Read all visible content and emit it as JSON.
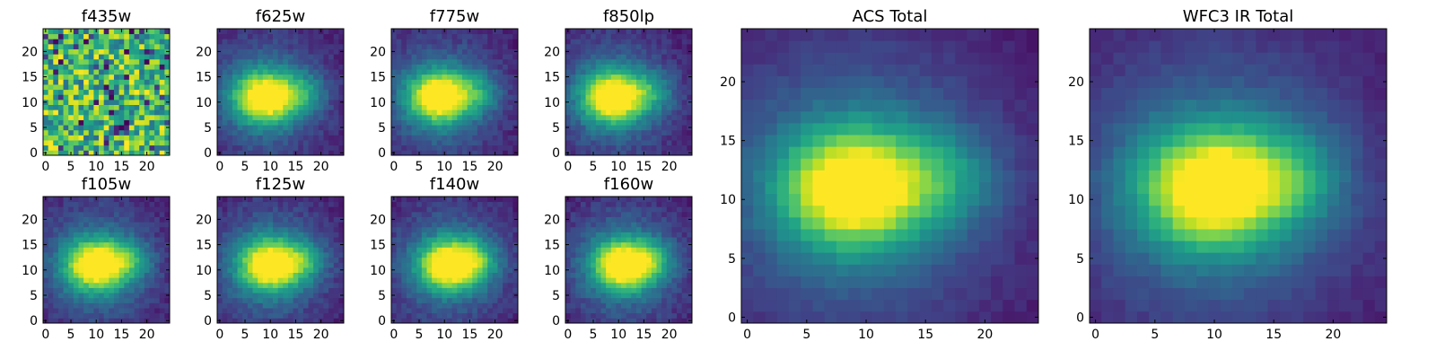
{
  "chart_data": [
    {
      "type": "heatmap",
      "title": "f435w",
      "grid": "25x25",
      "pattern": "noise",
      "xlim": [
        0,
        24
      ],
      "ylim": [
        0,
        24
      ],
      "xticks": [
        "0",
        "5",
        "10",
        "15",
        "20"
      ],
      "yticks": [
        "0",
        "5",
        "10",
        "15",
        "20"
      ],
      "colormap": "viridis"
    },
    {
      "type": "heatmap",
      "title": "f625w",
      "grid": "25x25",
      "pattern": "source",
      "peak": [
        9,
        11
      ],
      "xlim": [
        0,
        24
      ],
      "ylim": [
        0,
        24
      ],
      "xticks": [
        "0",
        "5",
        "10",
        "15",
        "20"
      ],
      "yticks": [
        "0",
        "5",
        "10",
        "15",
        "20"
      ],
      "colormap": "viridis"
    },
    {
      "type": "heatmap",
      "title": "f775w",
      "grid": "25x25",
      "pattern": "source",
      "peak": [
        9,
        11
      ],
      "xlim": [
        0,
        24
      ],
      "ylim": [
        0,
        24
      ],
      "xticks": [
        "0",
        "5",
        "10",
        "15",
        "20"
      ],
      "yticks": [
        "0",
        "5",
        "10",
        "15",
        "20"
      ],
      "colormap": "viridis"
    },
    {
      "type": "heatmap",
      "title": "f850lp",
      "grid": "25x25",
      "pattern": "source",
      "peak": [
        9,
        11
      ],
      "xlim": [
        0,
        24
      ],
      "ylim": [
        0,
        24
      ],
      "xticks": [
        "0",
        "5",
        "10",
        "15",
        "20"
      ],
      "yticks": [
        "0",
        "5",
        "10",
        "15",
        "20"
      ],
      "colormap": "viridis"
    },
    {
      "type": "heatmap",
      "title": "f105w",
      "grid": "25x25",
      "pattern": "source",
      "peak": [
        10,
        11
      ],
      "xlim": [
        0,
        24
      ],
      "ylim": [
        0,
        24
      ],
      "xticks": [
        "0",
        "5",
        "10",
        "15",
        "20"
      ],
      "yticks": [
        "0",
        "5",
        "10",
        "15",
        "20"
      ],
      "colormap": "viridis"
    },
    {
      "type": "heatmap",
      "title": "f125w",
      "grid": "25x25",
      "pattern": "source",
      "peak": [
        10,
        11
      ],
      "xlim": [
        0,
        24
      ],
      "ylim": [
        0,
        24
      ],
      "xticks": [
        "0",
        "5",
        "10",
        "15",
        "20"
      ],
      "yticks": [
        "0",
        "5",
        "10",
        "15",
        "20"
      ],
      "colormap": "viridis"
    },
    {
      "type": "heatmap",
      "title": "f140w",
      "grid": "25x25",
      "pattern": "source",
      "peak": [
        11,
        11
      ],
      "xlim": [
        0,
        24
      ],
      "ylim": [
        0,
        24
      ],
      "xticks": [
        "0",
        "5",
        "10",
        "15",
        "20"
      ],
      "yticks": [
        "0",
        "5",
        "10",
        "15",
        "20"
      ],
      "colormap": "viridis"
    },
    {
      "type": "heatmap",
      "title": "f160w",
      "grid": "25x25",
      "pattern": "source",
      "peak": [
        11,
        11
      ],
      "xlim": [
        0,
        24
      ],
      "ylim": [
        0,
        24
      ],
      "xticks": [
        "0",
        "5",
        "10",
        "15",
        "20"
      ],
      "yticks": [
        "0",
        "5",
        "10",
        "15",
        "20"
      ],
      "colormap": "viridis"
    },
    {
      "type": "heatmap",
      "title": "ACS Total",
      "grid": "25x25",
      "pattern": "source",
      "peak": [
        9,
        11
      ],
      "xlim": [
        0,
        24
      ],
      "ylim": [
        0,
        24
      ],
      "xticks": [
        "0",
        "5",
        "10",
        "15",
        "20"
      ],
      "yticks": [
        "0",
        "5",
        "10",
        "15",
        "20"
      ],
      "colormap": "viridis"
    },
    {
      "type": "heatmap",
      "title": "WFC3 IR Total",
      "grid": "25x25",
      "pattern": "source",
      "peak": [
        10,
        11
      ],
      "xlim": [
        0,
        24
      ],
      "ylim": [
        0,
        24
      ],
      "xticks": [
        "0",
        "5",
        "10",
        "15",
        "20"
      ],
      "yticks": [
        "0",
        "5",
        "10",
        "15",
        "20"
      ],
      "colormap": "viridis"
    }
  ]
}
